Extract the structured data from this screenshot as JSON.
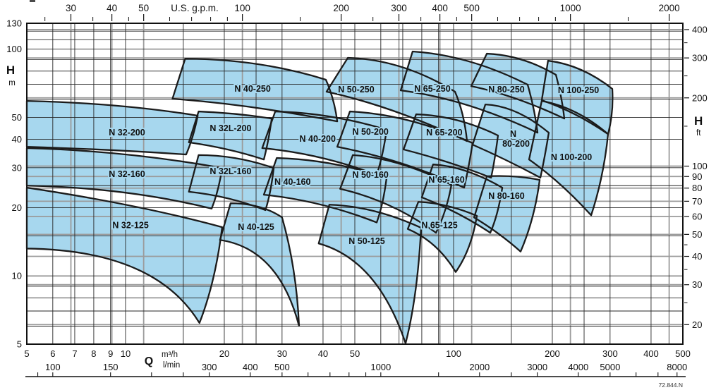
{
  "chart_data": {
    "type": "area",
    "description": "Centrifugal pump performance range chart (head H vs flow Q, log-log), tiled operating envelopes per pump model",
    "q_range_m3h": [
      5,
      500
    ],
    "h_range_m": [
      5,
      130
    ],
    "unit_conversions": {
      "gpm_per_m3h": 4.40287,
      "lmin_per_m3h": 16.66667,
      "m_per_ft": 0.3048
    },
    "top_axis": {
      "title": "U.S. g.p.m.",
      "major": [
        30,
        40,
        50,
        100,
        200,
        300,
        400,
        500,
        1000,
        2000
      ],
      "minor": [
        25,
        35,
        45,
        60,
        70,
        80,
        90,
        150,
        250,
        350,
        450,
        600,
        700,
        800,
        900,
        1500
      ]
    },
    "left_axis": {
      "symbol": "H",
      "unit": "m",
      "labels": [
        130,
        100,
        50,
        40,
        30,
        20,
        10,
        5
      ]
    },
    "right_axis": {
      "symbol": "H",
      "unit": "ft",
      "major": [
        400,
        300,
        200,
        100,
        90,
        80,
        70,
        60,
        50,
        40,
        30,
        20
      ],
      "minor": [
        350,
        250,
        150,
        45,
        35,
        25
      ]
    },
    "bottom_axis_m3h": {
      "symbol": "Q",
      "unit": "m³/h",
      "labels": [
        5,
        6,
        7,
        8,
        9,
        10,
        20,
        30,
        40,
        50,
        100,
        200,
        300,
        400,
        500
      ]
    },
    "bottom_axis_lmin": {
      "unit": "l/min",
      "labels": [
        100,
        150,
        300,
        400,
        500,
        1000,
        2000,
        3000,
        4000,
        5000,
        8000
      ],
      "minor_ticks": [
        90,
        200,
        250,
        600,
        700,
        800,
        900,
        1500,
        2500,
        6000,
        7000
      ]
    },
    "grid": {
      "v_black_m3h": [
        6,
        7,
        8,
        9,
        10,
        15,
        20,
        25,
        30,
        40,
        50,
        60,
        70,
        80,
        90,
        100,
        150,
        200,
        250,
        300,
        400
      ],
      "v_gray_gpm": [
        30,
        40,
        50,
        100,
        200,
        300,
        400,
        500,
        1000,
        2000
      ],
      "h_black_m": [
        6,
        7,
        8,
        9,
        10,
        15,
        20,
        25,
        30,
        40,
        50,
        60,
        70,
        80,
        90,
        100,
        110,
        120
      ],
      "h_gray_ft": [
        20,
        30,
        40,
        50,
        60,
        70,
        80,
        90,
        100,
        200,
        300,
        400
      ]
    },
    "colors": {
      "region_fill": "#a7d7ee",
      "region_outline": "#1b1b1b",
      "grid_metric": "#262626",
      "grid_imperial": "#9b9b9b",
      "text": "#111111",
      "border": "#111111"
    },
    "regions": [
      {
        "name": "N 32-125",
        "label": [
          10.36,
          16.7
        ],
        "outline": [
          [
            5,
            13.2
          ],
          [
            5,
            24.5
          ],
          [
            10.9,
            20.7
          ],
          [
            19.7,
            16.4
          ],
          [
            18.8,
            9.39
          ],
          [
            16.8,
            6.2
          ],
          [
            12.3,
            13.0
          ]
        ]
      },
      {
        "name": "N 40-125",
        "label": [
          25.0,
          16.4
        ],
        "outline": [
          [
            19.4,
            14.4
          ],
          [
            20.9,
            20.9
          ],
          [
            25.9,
            20.9
          ],
          [
            30.0,
            18.1
          ],
          [
            33.2,
            10.8
          ],
          [
            33.8,
            6.02
          ],
          [
            29.3,
            13.2
          ]
        ]
      },
      {
        "name": "N 50-125",
        "label": [
          54.4,
          14.2
        ],
        "outline": [
          [
            38.8,
            13.9
          ],
          [
            41.8,
            20.6
          ],
          [
            57.2,
            20.3
          ],
          [
            79.6,
            16.3
          ],
          [
            77.7,
            8.14
          ],
          [
            71.4,
            5.04
          ],
          [
            58.6,
            11.8
          ]
        ]
      },
      {
        "name": "N 65-125",
        "label": [
          90.6,
          16.7
        ],
        "outline": [
          [
            72.5,
            16.1
          ],
          [
            78.1,
            21.2
          ],
          [
            96.1,
            20.9
          ],
          [
            117.8,
            18.4
          ],
          [
            113.2,
            13.0
          ],
          [
            101.5,
            10.4
          ],
          [
            89.2,
            14.2
          ]
        ]
      },
      {
        "name": "N 32-160",
        "label": [
          10.1,
          28.1
        ],
        "outline": [
          [
            5,
            25.0
          ],
          [
            5,
            36.6
          ],
          [
            10.1,
            35.6
          ],
          [
            19.7,
            29.9
          ],
          [
            19.2,
            23.5
          ],
          [
            18.3,
            19.8
          ],
          [
            10.1,
            24.5
          ]
        ]
      },
      {
        "name": "N 32L-160",
        "label": [
          20.9,
          28.9
        ],
        "outline": [
          [
            15.6,
            23.5
          ],
          [
            16.7,
            34.1
          ],
          [
            21.8,
            34.1
          ],
          [
            28.3,
            29.9
          ],
          [
            27.7,
            23.0
          ],
          [
            26.7,
            19.5
          ],
          [
            20.7,
            22.5
          ]
        ]
      },
      {
        "name": "N 40-160",
        "label": [
          32.3,
          26.0
        ],
        "outline": [
          [
            26.4,
            22.8
          ],
          [
            28.9,
            33.1
          ],
          [
            42.5,
            32.6
          ],
          [
            62.5,
            27.1
          ],
          [
            61.0,
            20.6
          ],
          [
            58.3,
            17.2
          ],
          [
            39.4,
            21.5
          ]
        ]
      },
      {
        "name": "N 50-160",
        "label": [
          55.8,
          27.9
        ],
        "outline": [
          [
            45.1,
            24.2
          ],
          [
            49.3,
            34.1
          ],
          [
            68.0,
            33.1
          ],
          [
            98.5,
            25.2
          ],
          [
            95.2,
            19.2
          ],
          [
            88.4,
            15.5
          ],
          [
            64.7,
            21.5
          ]
        ]
      },
      {
        "name": "N 65-160",
        "label": [
          95.2,
          26.5
        ],
        "outline": [
          [
            80.0,
            22.2
          ],
          [
            86.6,
            31.0
          ],
          [
            108.8,
            30.4
          ],
          [
            140.8,
            24.5
          ],
          [
            136.6,
            18.5
          ],
          [
            129.4,
            15.5
          ],
          [
            103.5,
            19.2
          ]
        ]
      },
      {
        "name": "N 80-160",
        "label": [
          145.0,
          22.5
        ],
        "outline": [
          [
            115.5,
            18.1
          ],
          [
            126.3,
            27.5
          ],
          [
            153.9,
            27.9
          ],
          [
            183.0,
            26.5
          ],
          [
            176.8,
            17.9
          ],
          [
            160.1,
            12.8
          ],
          [
            138.0,
            15.5
          ]
        ]
      },
      {
        "name": "N 32-200",
        "label": [
          10.1,
          42.8
        ],
        "outline": [
          [
            5,
            37.1
          ],
          [
            5,
            59.1
          ],
          [
            9.61,
            57.8
          ],
          [
            16.6,
            50.9
          ],
          [
            16.1,
            40.7
          ],
          [
            15.3,
            34.3
          ],
          [
            9.15,
            36.1
          ]
        ]
      },
      {
        "name": "N 32L-200",
        "label": [
          20.9,
          44.7
        ],
        "outline": [
          [
            15.6,
            38.8
          ],
          [
            16.7,
            53.1
          ],
          [
            21.8,
            52.3
          ],
          [
            27.9,
            49.4
          ],
          [
            27.3,
            39.3
          ],
          [
            26.4,
            32.6
          ],
          [
            20.7,
            36.6
          ]
        ]
      },
      {
        "name": "N 40-200",
        "label": [
          38.5,
          40.2
        ],
        "outline": [
          [
            26.1,
            36.6
          ],
          [
            28.6,
            53.1
          ],
          [
            42.5,
            52.3
          ],
          [
            62.5,
            44.1
          ],
          [
            61.0,
            34.1
          ],
          [
            58.3,
            27.9
          ],
          [
            39.4,
            34.6
          ]
        ]
      },
      {
        "name": "N 50-200",
        "label": [
          55.8,
          43.1
        ],
        "outline": [
          [
            44.2,
            37.1
          ],
          [
            48.3,
            53.1
          ],
          [
            73.2,
            51.6
          ],
          [
            114.3,
            38.5
          ],
          [
            111.0,
            29.5
          ],
          [
            107.7,
            24.5
          ],
          [
            69.7,
            32.6
          ]
        ]
      },
      {
        "name": "N 65-200",
        "label": [
          93.7,
          42.8
        ],
        "outline": [
          [
            70.4,
            36.1
          ],
          [
            76.9,
            51.6
          ],
          [
            102.5,
            50.9
          ],
          [
            136.6,
            41.6
          ],
          [
            133.3,
            31.7
          ],
          [
            130.1,
            27.1
          ],
          [
            96.1,
            32.2
          ]
        ]
      },
      {
        "name": "N 80-200",
        "label": [
          152.0,
          42.2
        ],
        "two_line": true,
        "label2_h": 38.5,
        "outline": [
          [
            114.3,
            37.9
          ],
          [
            125.0,
            57.0
          ],
          [
            155.4,
            56.2
          ],
          [
            195.1,
            42.8
          ],
          [
            189.4,
            32.9
          ],
          [
            183.9,
            27.1
          ],
          [
            145.0,
            32.6
          ]
        ]
      },
      {
        "name": "N 100-200",
        "label": [
          228.7,
          33.3
        ],
        "outline": [
          [
            169.9,
            32.6
          ],
          [
            185.7,
            59.1
          ],
          [
            237.8,
            55.4
          ],
          [
            295.8,
            42.2
          ],
          [
            287.2,
            27.5
          ],
          [
            262.7,
            18.5
          ],
          [
            212.3,
            26.0
          ]
        ]
      },
      {
        "name": "N 40-250",
        "label": [
          24.4,
          66.8
        ],
        "outline": [
          [
            13.9,
            60.4
          ],
          [
            15.2,
            90.8
          ],
          [
            25.9,
            90.2
          ],
          [
            40.8,
            73.3
          ],
          [
            43.3,
            60.4
          ],
          [
            44.2,
            48.0
          ],
          [
            24.0,
            57.0
          ]
        ]
      },
      {
        "name": "N 50-250",
        "label": [
          50.5,
          66.3
        ],
        "outline": [
          [
            41.0,
            64.9
          ],
          [
            47.6,
            91.5
          ],
          [
            69.7,
            90.2
          ],
          [
            101.0,
            64.9
          ],
          [
            107.7,
            52.3
          ],
          [
            109.9,
            39.3
          ],
          [
            64.7,
            56.2
          ]
        ]
      },
      {
        "name": "N 65-250",
        "label": [
          86.2,
          66.8
        ],
        "outline": [
          [
            69.0,
            65.8
          ],
          [
            75.0,
            97.6
          ],
          [
            111.6,
            94.1
          ],
          [
            168.2,
            69.7
          ],
          [
            176.8,
            54.2
          ],
          [
            180.3,
            42.8
          ],
          [
            108.8,
            60.4
          ]
        ]
      },
      {
        "name": "N 80-250",
        "label": [
          145.0,
          66.3
        ],
        "outline": [
          [
            113.2,
            68.7
          ],
          [
            126.3,
            95.5
          ],
          [
            161.7,
            94.1
          ],
          [
            205.1,
            77.1
          ],
          [
            214.4,
            60.4
          ],
          [
            217.6,
            49.4
          ],
          [
            153.9,
            62.6
          ]
        ]
      },
      {
        "name": "N 100-250",
        "label": [
          240.3,
          65.8
        ],
        "outline": [
          [
            185.7,
            59.5
          ],
          [
            194.1,
            88.9
          ],
          [
            246.3,
            85.2
          ],
          [
            304.7,
            66.8
          ],
          [
            307.7,
            52.3
          ],
          [
            295.8,
            42.2
          ],
          [
            234.3,
            53.1
          ]
        ]
      }
    ],
    "footnote": "72.844.N"
  }
}
